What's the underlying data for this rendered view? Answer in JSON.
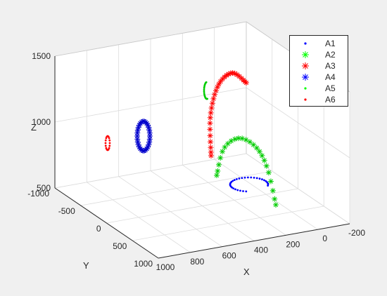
{
  "chart_data": {
    "type": "scatter3d",
    "view": "perspective box, x axis descending toward viewer",
    "xlabel": "X",
    "ylabel": "Y",
    "zlabel": "Z",
    "xlim": [
      -200,
      1000
    ],
    "ylim": [
      -1000,
      1000
    ],
    "zlim": [
      500,
      1500
    ],
    "x_ticks": [
      "-200",
      "0",
      "200",
      "400",
      "600",
      "800",
      "1000"
    ],
    "y_ticks": [
      "-1000",
      "-500",
      "0",
      "500",
      "1000"
    ],
    "z_ticks": [
      "500",
      "1000",
      "1500"
    ],
    "grid": true,
    "legend_position": "top-right",
    "series": [
      {
        "name": "A1",
        "marker": ".",
        "color": "#0000ff",
        "shape": "half-ellipse arc (horizontal)",
        "center": [
          350,
          200,
          560
        ],
        "extent": [
          240,
          200,
          20
        ]
      },
      {
        "name": "A2",
        "marker": "*",
        "color": "#00cc00",
        "shape": "vertical arc",
        "center": [
          480,
          100,
          850
        ],
        "extent": [
          350,
          400,
          300
        ]
      },
      {
        "name": "A3",
        "marker": "*",
        "color": "#ff0000",
        "shape": "vertical arc",
        "center": [
          500,
          -300,
          1250
        ],
        "extent": [
          200,
          500,
          400
        ]
      },
      {
        "name": "A4",
        "marker": "*",
        "color": "#0000cc",
        "shape": "vertical ellipse",
        "center": [
          900,
          -200,
          1100
        ],
        "extent": [
          60,
          120,
          260
        ]
      },
      {
        "name": "A5",
        "marker": ".",
        "color": "#00cc00",
        "shape": "small vertical ellipse",
        "center": [
          850,
          -800,
          1350
        ],
        "extent": [
          30,
          60,
          90
        ]
      },
      {
        "name": "A6",
        "marker": ".",
        "color": "#ff0000",
        "shape": "small vertical ellipse",
        "center": [
          1000,
          300,
          900
        ],
        "extent": [
          30,
          40,
          80
        ]
      }
    ]
  },
  "legend": {
    "entries": [
      {
        "label": "A1",
        "marker": ".",
        "color": "#0000ff"
      },
      {
        "label": "A2",
        "marker": "*",
        "color": "#00ff00"
      },
      {
        "label": "A3",
        "marker": "*",
        "color": "#ff0000"
      },
      {
        "label": "A4",
        "marker": "*",
        "color": "#0000ff"
      },
      {
        "label": "A5",
        "marker": ".",
        "color": "#00ff00"
      },
      {
        "label": "A6",
        "marker": ".",
        "color": "#ff0000"
      }
    ]
  },
  "colors": {
    "figure_bg": "#f0f0f0",
    "axes_bg": "#ffffff",
    "grid": "#dcdcdc",
    "axis": "#262626"
  }
}
